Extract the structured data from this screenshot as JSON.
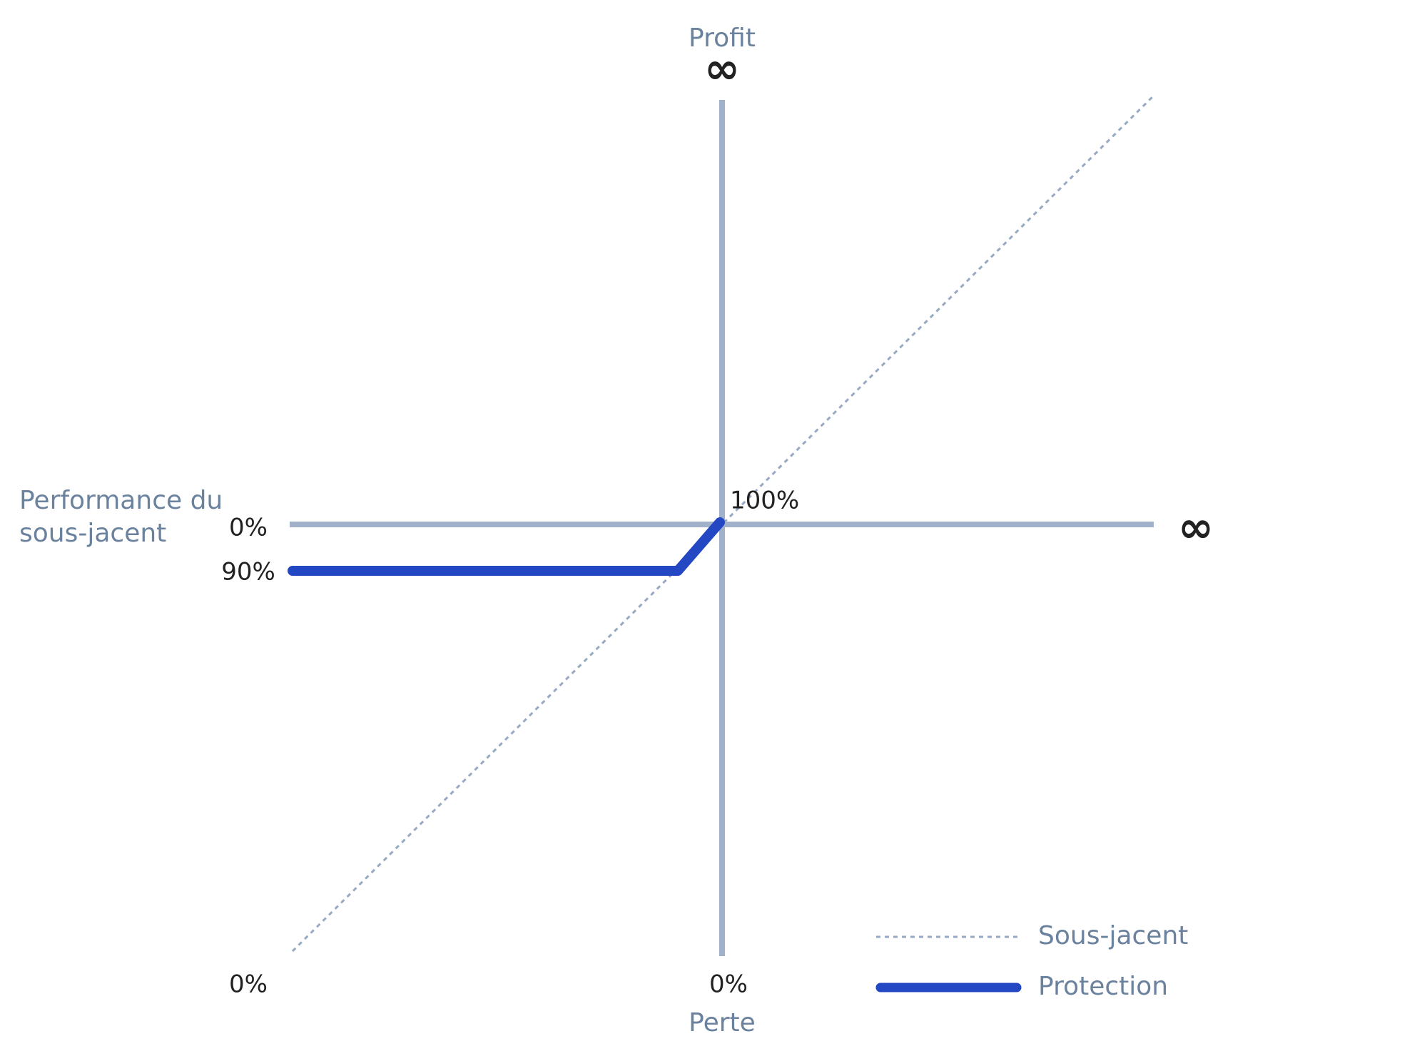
{
  "header": {
    "y_axis_top": "Profit",
    "y_axis_top_symbol": "∞",
    "y_axis_bottom": "Perte",
    "x_axis_right_symbol": "∞",
    "x_axis_title_lines": [
      "Performance du",
      "sous-jacent"
    ]
  },
  "labels": {
    "origin": "100%",
    "y_zero": "0%",
    "floor": "90%",
    "bottom_left": "0%",
    "bottom_center": "0%"
  },
  "legend": {
    "items": [
      {
        "label": "Sous-jacent"
      },
      {
        "label": "Protection"
      }
    ]
  }
}
